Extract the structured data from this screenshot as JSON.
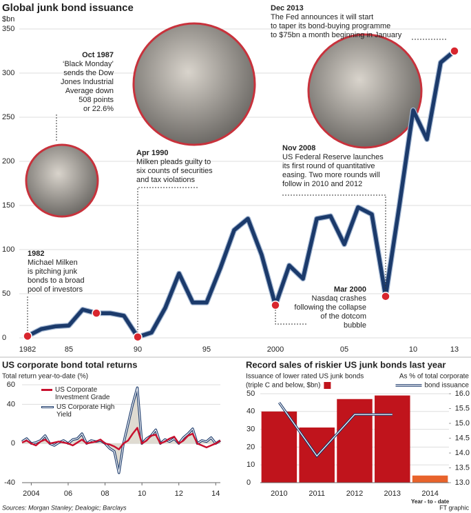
{
  "chart_data": [
    {
      "type": "line",
      "title": "Global junk bond issuance",
      "y_label": "$bn",
      "x": [
        1982,
        1983,
        1984,
        1985,
        1986,
        1987,
        1988,
        1989,
        1990,
        1991,
        1992,
        1993,
        1994,
        1995,
        1996,
        1997,
        1998,
        1999,
        2000,
        2001,
        2002,
        2003,
        2004,
        2005,
        2006,
        2007,
        2008,
        2009,
        2010,
        2011,
        2012,
        2013
      ],
      "values": [
        2,
        10,
        13,
        14,
        32,
        28,
        28,
        25,
        1,
        6,
        34,
        73,
        40,
        40,
        79,
        122,
        135,
        94,
        37,
        82,
        67,
        135,
        138,
        106,
        148,
        140,
        47,
        150,
        258,
        225,
        312,
        325
      ],
      "color": "#1b3a6b",
      "xlim": [
        1982,
        2013
      ],
      "xticks": [
        1982,
        {
          "value": 1985,
          "label": "85"
        },
        {
          "value": 1990,
          "label": "90"
        },
        {
          "value": 1995,
          "label": "95"
        },
        2000,
        {
          "value": 2005,
          "label": "05"
        },
        {
          "value": 2010,
          "label": "10"
        },
        {
          "value": 2013,
          "label": "13"
        }
      ],
      "ylim": [
        0,
        350
      ],
      "yticks": [
        0,
        50,
        100,
        150,
        200,
        250,
        300,
        350
      ],
      "grid": true,
      "annotations": [
        {
          "x": 1982,
          "label": "1982",
          "text": [
            "Michael Milken",
            "is pitching junk",
            "bonds to a broad",
            "pool of investors"
          ]
        },
        {
          "x": 1987,
          "label": "Oct 1987",
          "text": [
            "‘Black Monday’",
            "sends the Dow",
            "Jones Industrial",
            "Average down",
            "508 points",
            "or 22.6%"
          ]
        },
        {
          "x": 1990,
          "label": "Apr 1990",
          "text": [
            "Milken pleads guilty to",
            "six counts of securities",
            "and tax violations"
          ]
        },
        {
          "x": 2000,
          "label": "Mar 2000",
          "text": [
            "Nasdaq crashes",
            "following the collapse",
            "of the dotcom",
            "bubble"
          ]
        },
        {
          "x": 2008,
          "label": "Nov 2008",
          "text": [
            "US Federal Reserve launches",
            "its first round of quantitative",
            "easing. Two more rounds will",
            "follow in 2010 and 2012"
          ]
        },
        {
          "x": 2013,
          "label": "Dec 2013",
          "text": [
            "The Fed announces it will start",
            "to taper its bond-buying programme",
            "to $75bn a month beginning in January"
          ]
        }
      ]
    },
    {
      "type": "line",
      "title": "US corporate bond total returns",
      "y_label": "Total return year-to-date (%)",
      "x": [
        2003.5,
        2003.75,
        2004.0,
        2004.25,
        2004.5,
        2004.75,
        2005.0,
        2005.25,
        2005.5,
        2005.75,
        2006.0,
        2006.25,
        2006.5,
        2006.75,
        2007.0,
        2007.25,
        2007.5,
        2007.75,
        2008.0,
        2008.25,
        2008.5,
        2008.75,
        2009.0,
        2009.25,
        2009.5,
        2009.75,
        2010.0,
        2010.25,
        2010.5,
        2010.75,
        2011.0,
        2011.25,
        2011.5,
        2011.75,
        2012.0,
        2012.25,
        2012.5,
        2012.75,
        2013.0,
        2013.25,
        2013.5,
        2013.75,
        2014.0,
        2014.25
      ],
      "series": [
        {
          "name": "US Corporate Investment Grade",
          "color": "#c8102e",
          "values": [
            1,
            3,
            0,
            -2,
            2,
            4,
            0,
            1,
            2,
            1,
            0,
            -2,
            1,
            4,
            0,
            1,
            2,
            4,
            0,
            -1,
            -3,
            -6,
            0,
            3,
            10,
            16,
            0,
            3,
            8,
            9,
            0,
            2,
            5,
            7,
            0,
            3,
            8,
            10,
            0,
            -2,
            -4,
            -2,
            0,
            3
          ]
        },
        {
          "name": "US Corporate High Yield",
          "color": "#1b3a6b",
          "values": [
            2,
            5,
            0,
            1,
            3,
            8,
            0,
            -2,
            1,
            3,
            0,
            4,
            5,
            10,
            0,
            3,
            2,
            3,
            0,
            -5,
            -8,
            -30,
            0,
            20,
            40,
            57,
            0,
            5,
            8,
            14,
            0,
            4,
            2,
            5,
            0,
            6,
            10,
            15,
            0,
            3,
            2,
            6,
            0,
            3
          ]
        }
      ],
      "xlim": [
        2003.5,
        2014.25
      ],
      "xticks": [
        2004,
        {
          "value": 2006,
          "label": "06"
        },
        {
          "value": 2008,
          "label": "08"
        },
        {
          "value": 2010,
          "label": "10"
        },
        {
          "value": 2012,
          "label": "12"
        },
        {
          "value": 2014,
          "label": "14"
        }
      ],
      "ylim": [
        -40,
        60
      ],
      "yticks": [
        -40,
        0,
        40,
        60
      ],
      "grid": true
    },
    {
      "type": "bar",
      "title": "Record sales of riskier US junk bonds last year",
      "y_label": "Issuance of lower rated US junk bonds",
      "y2_label": "As % of total corporate",
      "categories": [
        "2010",
        "2011",
        "2012",
        "2013",
        "2014"
      ],
      "category_note": "Year - to - date",
      "series": [
        {
          "name": "(triple C and below, $bn)",
          "color": "#c0141c",
          "colors": [
            "#c0141c",
            "#c0141c",
            "#c0141c",
            "#c0141c",
            "#e8632b"
          ],
          "values": [
            40,
            31,
            47,
            49,
            4
          ]
        },
        {
          "name": "bond issuance",
          "color": "#1b3a6b",
          "axis": "y2",
          "values": [
            15.7,
            13.9,
            15.3,
            15.3,
            null
          ]
        }
      ],
      "ylim": [
        0,
        50
      ],
      "yticks": [
        0,
        10,
        20,
        30,
        40,
        50
      ],
      "y2lim": [
        13,
        16
      ],
      "y2ticks": [
        {
          "value": 13,
          "label": "13.0"
        },
        {
          "value": 13.5,
          "label": "13.5"
        },
        {
          "value": 14,
          "label": "14.0"
        },
        {
          "value": 14.5,
          "label": "14.5"
        },
        {
          "value": 15,
          "label": "15.0"
        },
        {
          "value": 15.5,
          "label": "15.5"
        },
        {
          "value": 16,
          "label": "16.0"
        }
      ],
      "grid": true
    }
  ],
  "footer": {
    "sources": "Sources: Morgan Stanley; Dealogic; Barclays",
    "credit": "FT graphic"
  }
}
